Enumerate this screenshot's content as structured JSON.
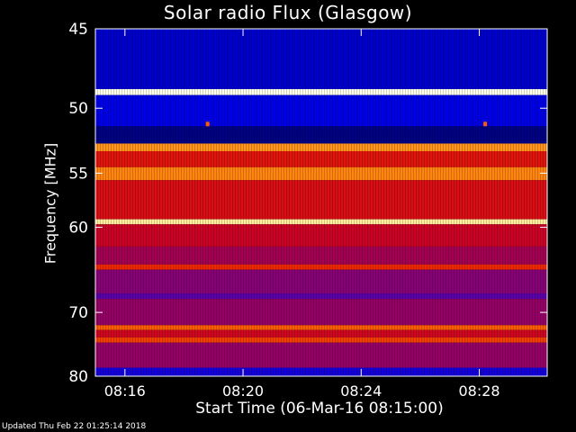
{
  "chart_data": {
    "type": "heatmap",
    "title": "Solar radio Flux (Glasgow)",
    "xlabel": "Start Time (06-Mar-16 08:15:00)",
    "ylabel": "Frequency [MHz]",
    "x_ticks": [
      "08:16",
      "08:20",
      "08:24",
      "08:28"
    ],
    "x_tick_minutes": [
      1,
      5,
      9,
      13
    ],
    "x_range_minutes": [
      0,
      15.3
    ],
    "y_ticks": [
      45,
      50,
      55,
      60,
      70,
      80
    ],
    "y_range_mhz": [
      45,
      80
    ],
    "y_scale": "reciprocal",
    "colormap": "blue-red-yellow-white",
    "bands": [
      {
        "from_mhz": 45.0,
        "to_mhz": 48.7,
        "level": 0.1
      },
      {
        "from_mhz": 48.7,
        "to_mhz": 49.1,
        "level": 1.0
      },
      {
        "from_mhz": 49.1,
        "to_mhz": 51.3,
        "level": 0.12
      },
      {
        "from_mhz": 51.3,
        "to_mhz": 52.6,
        "level": 0.04
      },
      {
        "from_mhz": 52.6,
        "to_mhz": 53.2,
        "level": 0.8
      },
      {
        "from_mhz": 53.2,
        "to_mhz": 54.5,
        "level": 0.55
      },
      {
        "from_mhz": 54.5,
        "to_mhz": 55.6,
        "level": 0.78
      },
      {
        "from_mhz": 55.6,
        "to_mhz": 59.2,
        "level": 0.52
      },
      {
        "from_mhz": 59.2,
        "to_mhz": 59.7,
        "level": 0.95
      },
      {
        "from_mhz": 59.7,
        "to_mhz": 62.0,
        "level": 0.46
      },
      {
        "from_mhz": 62.0,
        "to_mhz": 64.0,
        "level": 0.4
      },
      {
        "from_mhz": 64.0,
        "to_mhz": 64.6,
        "level": 0.62
      },
      {
        "from_mhz": 64.6,
        "to_mhz": 67.5,
        "level": 0.36
      },
      {
        "from_mhz": 67.5,
        "to_mhz": 68.2,
        "level": 0.3
      },
      {
        "from_mhz": 68.2,
        "to_mhz": 71.8,
        "level": 0.38
      },
      {
        "from_mhz": 71.8,
        "to_mhz": 72.5,
        "level": 0.72
      },
      {
        "from_mhz": 72.5,
        "to_mhz": 73.6,
        "level": 0.48
      },
      {
        "from_mhz": 73.6,
        "to_mhz": 74.4,
        "level": 0.66
      },
      {
        "from_mhz": 74.4,
        "to_mhz": 78.5,
        "level": 0.38
      },
      {
        "from_mhz": 78.5,
        "to_mhz": 80.0,
        "level": 0.16
      }
    ],
    "bright_spots": [
      {
        "minute": 3.8,
        "mhz": 51.1
      },
      {
        "minute": 13.2,
        "mhz": 51.1
      }
    ]
  },
  "footer": "Updated Thu Feb 22 01:25:14 2018"
}
